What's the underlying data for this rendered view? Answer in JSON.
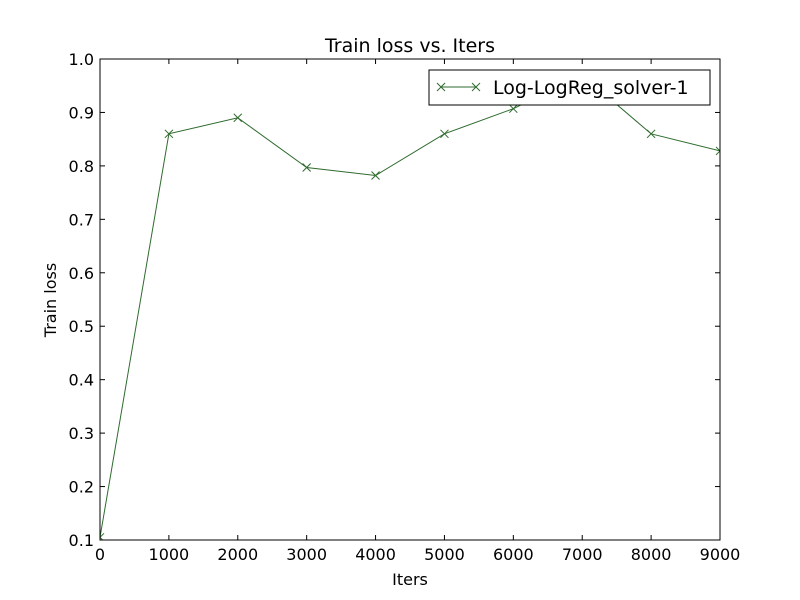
{
  "chart_data": {
    "type": "line",
    "title": "Train loss  vs. Iters",
    "xlabel": "Iters",
    "ylabel": "Train loss",
    "xlim": [
      0,
      9000
    ],
    "ylim": [
      0.1,
      1.0
    ],
    "x_ticks": [
      "0",
      "1000",
      "2000",
      "3000",
      "4000",
      "5000",
      "6000",
      "7000",
      "8000",
      "9000"
    ],
    "y_ticks": [
      "0.1",
      "0.2",
      "0.3",
      "0.4",
      "0.5",
      "0.6",
      "0.7",
      "0.8",
      "0.9",
      "1.0"
    ],
    "grid": false,
    "legend_position": "top-right",
    "series": [
      {
        "name": "Log-LogReg_solver-1",
        "color": "#2e6b2e",
        "marker": "x",
        "x": [
          0,
          1000,
          2000,
          3000,
          4000,
          5000,
          6000,
          7000,
          8000,
          9000
        ],
        "y": [
          0.105,
          0.86,
          0.89,
          0.797,
          0.782,
          0.86,
          0.907,
          0.97,
          0.86,
          0.828
        ]
      }
    ]
  }
}
